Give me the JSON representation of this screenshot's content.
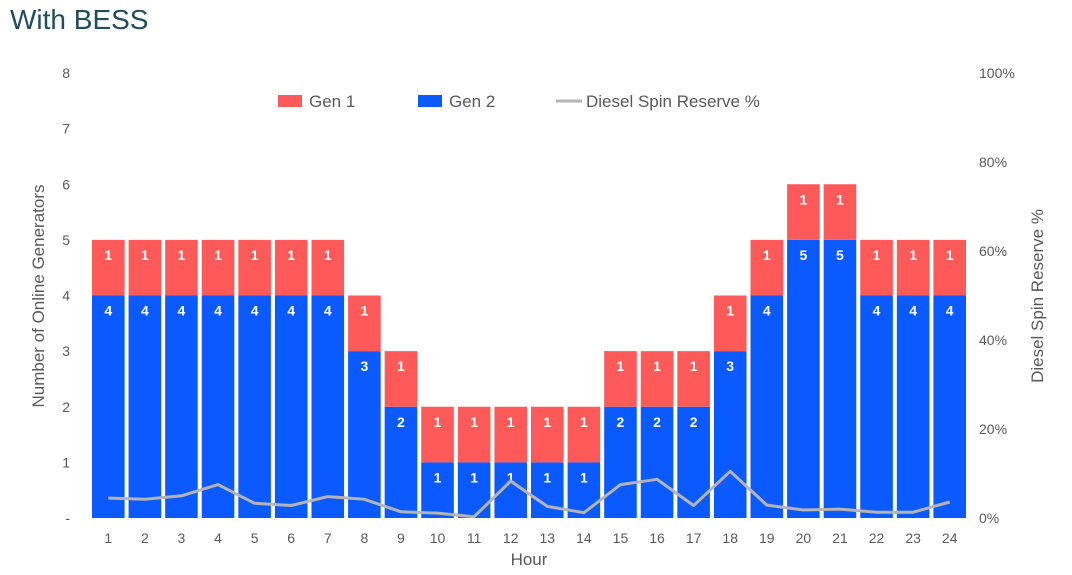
{
  "title": "With BESS",
  "chart_data": {
    "type": "bar",
    "stacked": true,
    "categories": [
      "1",
      "2",
      "3",
      "4",
      "5",
      "6",
      "7",
      "8",
      "9",
      "10",
      "11",
      "12",
      "13",
      "14",
      "15",
      "16",
      "17",
      "18",
      "19",
      "20",
      "21",
      "22",
      "23",
      "24"
    ],
    "series": [
      {
        "name": "Gen 1",
        "color": "#ff5a5a",
        "values": [
          1,
          1,
          1,
          1,
          1,
          1,
          1,
          1,
          1,
          1,
          1,
          1,
          1,
          1,
          1,
          1,
          1,
          1,
          1,
          1,
          1,
          1,
          1,
          1
        ]
      },
      {
        "name": "Gen 2",
        "color": "#0a5aff",
        "values": [
          4,
          4,
          4,
          4,
          4,
          4,
          4,
          3,
          2,
          1,
          1,
          1,
          1,
          1,
          2,
          2,
          2,
          3,
          4,
          5,
          5,
          4,
          4,
          4
        ]
      }
    ],
    "line_series": {
      "name": "Diesel Spin Reserve %",
      "color": "#b4b4b4",
      "axis": "right",
      "values": [
        4.5,
        4.2,
        5.0,
        7.5,
        3.3,
        2.8,
        4.8,
        4.2,
        1.4,
        1.1,
        0.3,
        8.3,
        2.6,
        1.2,
        7.5,
        8.7,
        2.8,
        10.5,
        2.9,
        1.8,
        2.0,
        1.3,
        1.3,
        3.6
      ]
    },
    "xlabel": "Hour",
    "ylabel": "Number of Online Generators",
    "y2label": "Diesel Spin Reserve %",
    "ylim": [
      0,
      8
    ],
    "y_tick_labels": [
      "-",
      "1",
      "2",
      "3",
      "4",
      "5",
      "6",
      "7",
      "8"
    ],
    "y2lim": [
      0,
      100
    ],
    "y2_tick_labels": [
      "0%",
      "20%",
      "40%",
      "60%",
      "80%",
      "100%"
    ],
    "legend": {
      "placement": "top",
      "items": [
        "Gen 1",
        "Gen 2",
        "Diesel Spin Reserve %"
      ]
    },
    "grid": false
  }
}
